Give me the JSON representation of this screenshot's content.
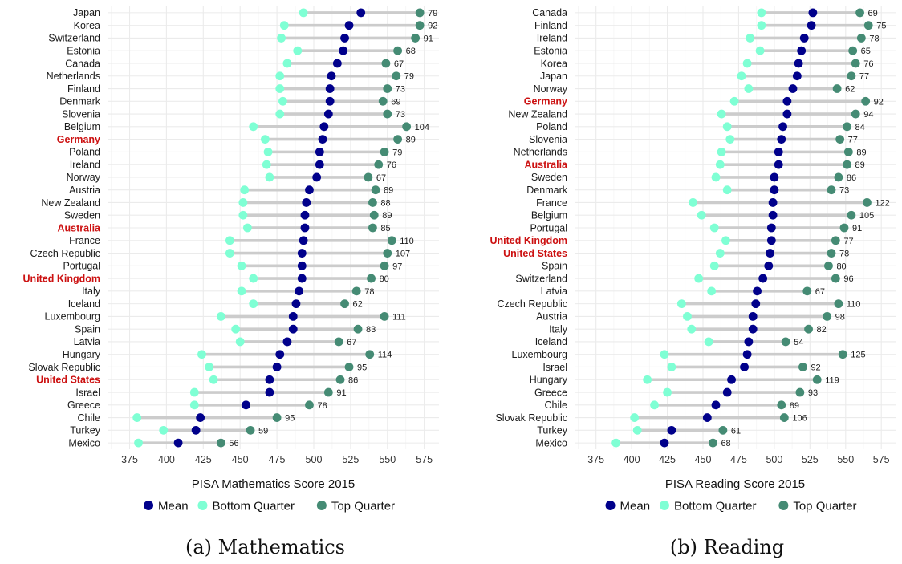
{
  "chart_data": [
    {
      "type": "dumbbell",
      "xlabel": "PISA Mathematics Score 2015",
      "xlim": [
        360,
        585
      ],
      "xticks": [
        375,
        400,
        425,
        450,
        475,
        500,
        525,
        550,
        575
      ],
      "caption": "(a) Mathematics",
      "legend": [
        "Mean",
        "Bottom Quarter",
        "Top Quarter"
      ],
      "highlighted": [
        "Germany",
        "Australia",
        "United Kingdom",
        "United States"
      ],
      "countries": [
        {
          "name": "Japan",
          "bottom": 493,
          "mean": 532,
          "top": 572,
          "gap": "79"
        },
        {
          "name": "Korea",
          "bottom": 480,
          "mean": 524,
          "top": 572,
          "gap": "92"
        },
        {
          "name": "Switzerland",
          "bottom": 478,
          "mean": 521,
          "top": 569,
          "gap": "91"
        },
        {
          "name": "Estonia",
          "bottom": 489,
          "mean": 520,
          "top": 557,
          "gap": "68"
        },
        {
          "name": "Canada",
          "bottom": 482,
          "mean": 516,
          "top": 549,
          "gap": "67"
        },
        {
          "name": "Netherlands",
          "bottom": 477,
          "mean": 512,
          "top": 556,
          "gap": "79"
        },
        {
          "name": "Finland",
          "bottom": 477,
          "mean": 511,
          "top": 550,
          "gap": "73"
        },
        {
          "name": "Denmark",
          "bottom": 479,
          "mean": 511,
          "top": 547,
          "gap": "69"
        },
        {
          "name": "Slovenia",
          "bottom": 477,
          "mean": 510,
          "top": 550,
          "gap": "73"
        },
        {
          "name": "Belgium",
          "bottom": 459,
          "mean": 507,
          "top": 563,
          "gap": "104"
        },
        {
          "name": "Germany",
          "bottom": 467,
          "mean": 506,
          "top": 557,
          "gap": "89"
        },
        {
          "name": "Poland",
          "bottom": 469,
          "mean": 504,
          "top": 548,
          "gap": "79"
        },
        {
          "name": "Ireland",
          "bottom": 468,
          "mean": 504,
          "top": 544,
          "gap": "76"
        },
        {
          "name": "Norway",
          "bottom": 470,
          "mean": 502,
          "top": 537,
          "gap": "67"
        },
        {
          "name": "Austria",
          "bottom": 453,
          "mean": 497,
          "top": 542,
          "gap": "89"
        },
        {
          "name": "New Zealand",
          "bottom": 452,
          "mean": 495,
          "top": 540,
          "gap": "88"
        },
        {
          "name": "Sweden",
          "bottom": 452,
          "mean": 494,
          "top": 541,
          "gap": "89"
        },
        {
          "name": "Australia",
          "bottom": 455,
          "mean": 494,
          "top": 540,
          "gap": "85"
        },
        {
          "name": "France",
          "bottom": 443,
          "mean": 493,
          "top": 553,
          "gap": "110"
        },
        {
          "name": "Czech Republic",
          "bottom": 443,
          "mean": 492,
          "top": 550,
          "gap": "107"
        },
        {
          "name": "Portugal",
          "bottom": 451,
          "mean": 492,
          "top": 548,
          "gap": "97"
        },
        {
          "name": "United Kingdom",
          "bottom": 459,
          "mean": 492,
          "top": 539,
          "gap": "80"
        },
        {
          "name": "Italy",
          "bottom": 451,
          "mean": 490,
          "top": 529,
          "gap": "78"
        },
        {
          "name": "Iceland",
          "bottom": 459,
          "mean": 488,
          "top": 521,
          "gap": "62"
        },
        {
          "name": "Luxembourg",
          "bottom": 437,
          "mean": 486,
          "top": 548,
          "gap": "111"
        },
        {
          "name": "Spain",
          "bottom": 447,
          "mean": 486,
          "top": 530,
          "gap": "83"
        },
        {
          "name": "Latvia",
          "bottom": 450,
          "mean": 482,
          "top": 517,
          "gap": "67"
        },
        {
          "name": "Hungary",
          "bottom": 424,
          "mean": 477,
          "top": 538,
          "gap": "114"
        },
        {
          "name": "Slovak Republic",
          "bottom": 429,
          "mean": 475,
          "top": 524,
          "gap": "95"
        },
        {
          "name": "United States",
          "bottom": 432,
          "mean": 470,
          "top": 518,
          "gap": "86"
        },
        {
          "name": "Israel",
          "bottom": 419,
          "mean": 470,
          "top": 510,
          "gap": "91"
        },
        {
          "name": "Greece",
          "bottom": 419,
          "mean": 454,
          "top": 497,
          "gap": "78"
        },
        {
          "name": "Chile",
          "bottom": 380,
          "mean": 423,
          "top": 475,
          "gap": "95"
        },
        {
          "name": "Turkey",
          "bottom": 398,
          "mean": 420,
          "top": 457,
          "gap": "59"
        },
        {
          "name": "Mexico",
          "bottom": 381,
          "mean": 408,
          "top": 437,
          "gap": "56"
        }
      ]
    },
    {
      "type": "dumbbell",
      "xlabel": "PISA Reading Score 2015",
      "xlim": [
        360,
        585
      ],
      "xticks": [
        375,
        400,
        425,
        450,
        475,
        500,
        525,
        550,
        575
      ],
      "caption": "(b) Reading",
      "legend": [
        "Mean",
        "Bottom Quarter",
        "Top Quarter"
      ],
      "highlighted": [
        "Germany",
        "Australia",
        "United Kingdom",
        "United States"
      ],
      "countries": [
        {
          "name": "Canada",
          "bottom": 491,
          "mean": 527,
          "top": 560,
          "gap": "69"
        },
        {
          "name": "Finland",
          "bottom": 491,
          "mean": 526,
          "top": 566,
          "gap": "75"
        },
        {
          "name": "Ireland",
          "bottom": 483,
          "mean": 521,
          "top": 561,
          "gap": "78"
        },
        {
          "name": "Estonia",
          "bottom": 490,
          "mean": 519,
          "top": 555,
          "gap": "65"
        },
        {
          "name": "Korea",
          "bottom": 481,
          "mean": 517,
          "top": 557,
          "gap": "76"
        },
        {
          "name": "Japan",
          "bottom": 477,
          "mean": 516,
          "top": 554,
          "gap": "77"
        },
        {
          "name": "Norway",
          "bottom": 482,
          "mean": 513,
          "top": 544,
          "gap": "62"
        },
        {
          "name": "Germany",
          "bottom": 472,
          "mean": 509,
          "top": 564,
          "gap": "92"
        },
        {
          "name": "New Zealand",
          "bottom": 463,
          "mean": 509,
          "top": 557,
          "gap": "94"
        },
        {
          "name": "Poland",
          "bottom": 467,
          "mean": 506,
          "top": 551,
          "gap": "84"
        },
        {
          "name": "Slovenia",
          "bottom": 469,
          "mean": 505,
          "top": 546,
          "gap": "77"
        },
        {
          "name": "Netherlands",
          "bottom": 463,
          "mean": 503,
          "top": 552,
          "gap": "89"
        },
        {
          "name": "Australia",
          "bottom": 462,
          "mean": 503,
          "top": 551,
          "gap": "89"
        },
        {
          "name": "Sweden",
          "bottom": 459,
          "mean": 500,
          "top": 545,
          "gap": "86"
        },
        {
          "name": "Denmark",
          "bottom": 467,
          "mean": 500,
          "top": 540,
          "gap": "73"
        },
        {
          "name": "France",
          "bottom": 443,
          "mean": 499,
          "top": 565,
          "gap": "122"
        },
        {
          "name": "Belgium",
          "bottom": 449,
          "mean": 499,
          "top": 554,
          "gap": "105"
        },
        {
          "name": "Portugal",
          "bottom": 458,
          "mean": 498,
          "top": 549,
          "gap": "91"
        },
        {
          "name": "United Kingdom",
          "bottom": 466,
          "mean": 498,
          "top": 543,
          "gap": "77"
        },
        {
          "name": "United States",
          "bottom": 462,
          "mean": 497,
          "top": 540,
          "gap": "78"
        },
        {
          "name": "Spain",
          "bottom": 458,
          "mean": 496,
          "top": 538,
          "gap": "80"
        },
        {
          "name": "Switzerland",
          "bottom": 447,
          "mean": 492,
          "top": 543,
          "gap": "96"
        },
        {
          "name": "Latvia",
          "bottom": 456,
          "mean": 488,
          "top": 523,
          "gap": "67"
        },
        {
          "name": "Czech Republic",
          "bottom": 435,
          "mean": 487,
          "top": 545,
          "gap": "110"
        },
        {
          "name": "Austria",
          "bottom": 439,
          "mean": 485,
          "top": 537,
          "gap": "98"
        },
        {
          "name": "Italy",
          "bottom": 442,
          "mean": 485,
          "top": 524,
          "gap": "82"
        },
        {
          "name": "Iceland",
          "bottom": 454,
          "mean": 482,
          "top": 508,
          "gap": "54"
        },
        {
          "name": "Luxembourg",
          "bottom": 423,
          "mean": 481,
          "top": 548,
          "gap": "125"
        },
        {
          "name": "Israel",
          "bottom": 428,
          "mean": 479,
          "top": 520,
          "gap": "92"
        },
        {
          "name": "Hungary",
          "bottom": 411,
          "mean": 470,
          "top": 530,
          "gap": "119"
        },
        {
          "name": "Greece",
          "bottom": 425,
          "mean": 467,
          "top": 518,
          "gap": "93"
        },
        {
          "name": "Chile",
          "bottom": 416,
          "mean": 459,
          "top": 505,
          "gap": "89"
        },
        {
          "name": "Slovak Republic",
          "bottom": 402,
          "mean": 453,
          "top": 507,
          "gap": "106"
        },
        {
          "name": "Turkey",
          "bottom": 404,
          "mean": 428,
          "top": 464,
          "gap": "61"
        },
        {
          "name": "Mexico",
          "bottom": 389,
          "mean": 423,
          "top": 457,
          "gap": "68"
        }
      ]
    }
  ],
  "colors": {
    "mean": "#00008b",
    "bottom": "#7fffd4",
    "top": "#458b74",
    "segment": "#cccccc",
    "grid_major": "#ebebeb",
    "grid_minor": "#f5f5f5",
    "highlight": "#cc1111"
  }
}
